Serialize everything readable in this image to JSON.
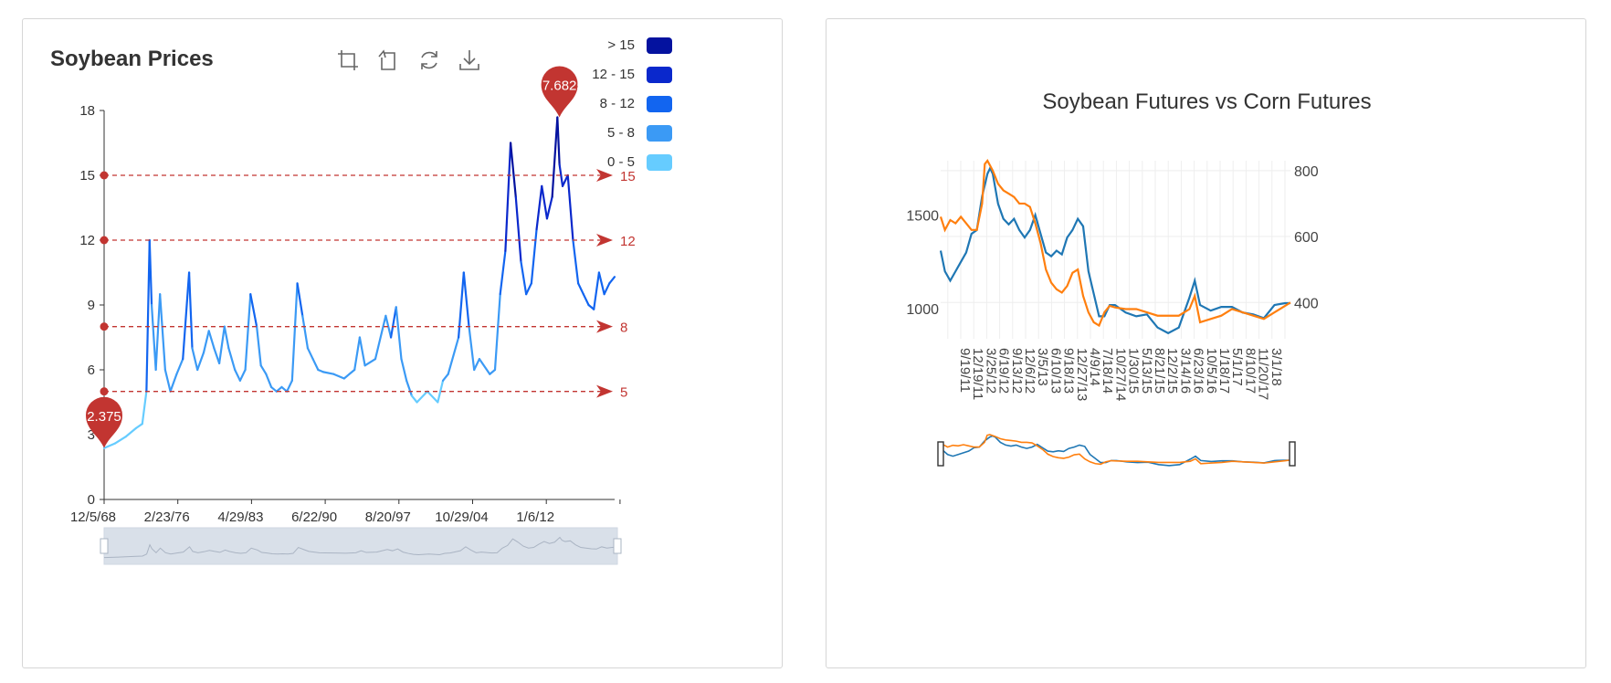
{
  "left_card": {
    "title": "Soybean Prices",
    "toolbox": [
      "data-zoom-icon",
      "zoom-reset-icon",
      "restore-icon",
      "download-icon"
    ]
  },
  "right_card": {
    "title": "Soybean Futures vs Corn Futures"
  },
  "chart_data": [
    {
      "type": "line",
      "title": "Soybean Prices",
      "x_tick_labels": [
        "12/5/68",
        "2/23/76",
        "4/29/83",
        "6/22/90",
        "8/20/97",
        "10/29/04",
        "1/6/12"
      ],
      "x_range": [
        1968.93,
        2018.0
      ],
      "yticks": [
        0,
        3,
        6,
        9,
        12,
        15,
        18
      ],
      "ylim": [
        0,
        18
      ],
      "series": [
        {
          "x": [
            1968.93,
            1970,
            1971,
            1972,
            1972.6,
            1973.0,
            1973.3,
            1973.5,
            1973.9,
            1974.3,
            1974.8,
            1975.3,
            1975.9,
            1976.5,
            1977.1,
            1977.4,
            1977.9,
            1978.5,
            1979.0,
            1979.5,
            1980.0,
            1980.5,
            1980.9,
            1981.5,
            1982.0,
            1982.5,
            1983.0,
            1983.6,
            1984.0,
            1984.5,
            1985.0,
            1985.5,
            1986.0,
            1986.5,
            1987.0,
            1987.5,
            1988.0,
            1988.5,
            1989.0,
            1989.5,
            1990.0,
            1991.0,
            1992.0,
            1993.0,
            1993.5,
            1994.0,
            1995.0,
            1996.0,
            1996.5,
            1997.0,
            1997.5,
            1998.0,
            1998.5,
            1999.0,
            2000.0,
            2001.0,
            2001.5,
            2002.0,
            2003.0,
            2003.5,
            2004.0,
            2004.5,
            2005.0,
            2006.0,
            2006.5,
            2007.0,
            2007.5,
            2008.0,
            2008.5,
            2009.0,
            2009.5,
            2010.0,
            2010.5,
            2011.0,
            2011.5,
            2012.0,
            2012.5,
            2012.7,
            2013.0,
            2013.5,
            2014.0,
            2014.5,
            2015.0,
            2015.5,
            2016.0,
            2016.5,
            2017.0,
            2017.5,
            2018.0
          ],
          "y": [
            2.375,
            2.6,
            2.9,
            3.3,
            3.5,
            5.0,
            12.0,
            9.0,
            6.0,
            9.5,
            6.0,
            5.0,
            5.8,
            6.5,
            10.5,
            7.0,
            6.0,
            6.8,
            7.8,
            7.0,
            6.3,
            8.0,
            7.0,
            6.0,
            5.5,
            6.0,
            9.5,
            8.0,
            6.2,
            5.8,
            5.2,
            5.0,
            5.2,
            5.0,
            5.5,
            10.0,
            8.5,
            7.0,
            6.5,
            6.0,
            5.9,
            5.8,
            5.6,
            6.0,
            7.5,
            6.2,
            6.5,
            8.5,
            7.5,
            8.9,
            6.5,
            5.5,
            4.8,
            4.5,
            5.0,
            4.5,
            5.5,
            5.8,
            7.5,
            10.5,
            8.0,
            6.0,
            6.5,
            5.8,
            6.0,
            9.5,
            11.5,
            16.5,
            14.0,
            11.0,
            9.5,
            10.0,
            12.5,
            14.5,
            13.0,
            14.0,
            17.6825,
            15.5,
            14.5,
            15.0,
            12.0,
            10.0,
            9.5,
            9.0,
            8.8,
            10.5,
            9.5,
            10.0,
            10.3
          ]
        }
      ],
      "visual_map": [
        {
          "label": "> 15",
          "min": 15,
          "max": 999,
          "color": "#04129f"
        },
        {
          "label": "12 - 15",
          "min": 12,
          "max": 15,
          "color": "#0a28cc"
        },
        {
          "label": "8 - 12",
          "min": 8,
          "max": 12,
          "color": "#1265f0"
        },
        {
          "label": "5 - 8",
          "min": 5,
          "max": 8,
          "color": "#3b9af5"
        },
        {
          "label": "0 - 5",
          "min": 0,
          "max": 5,
          "color": "#66ccff"
        }
      ],
      "mark_lines": [
        {
          "value": 15,
          "label": "15"
        },
        {
          "value": 12,
          "label": "12"
        },
        {
          "value": 8,
          "label": "8"
        },
        {
          "value": 5,
          "label": "5"
        }
      ],
      "mark_points": [
        {
          "x": 1968.93,
          "y": 2.375,
          "label": "2.375"
        },
        {
          "x": 2012.7,
          "y": 17.6825,
          "label": "17.6825"
        }
      ],
      "mark_color": "#c23531"
    },
    {
      "type": "line",
      "title": "Soybean Futures vs Corn Futures",
      "x_tick_labels": [
        "9/19/11",
        "12/19/11",
        "3/25/12",
        "6/19/12",
        "9/13/12",
        "12/6/12",
        "3/5/13",
        "6/10/13",
        "9/18/13",
        "12/27/13",
        "4/9/14",
        "7/18/14",
        "10/27/14",
        "1/30/15",
        "5/13/15",
        "8/21/15",
        "12/2/15",
        "3/14/16",
        "6/23/16",
        "10/5/16",
        "1/18/17",
        "5/1/17",
        "8/10/17",
        "11/20/17",
        "3/1/18"
      ],
      "y_left_ticks": [
        1000,
        1500
      ],
      "y_left_range": [
        840,
        1790
      ],
      "y_right_ticks": [
        400,
        600,
        800
      ],
      "y_right_range": [
        290,
        830
      ],
      "series": [
        {
          "axis": "left",
          "color": "#1f77b4",
          "x": [
            2011.72,
            2011.8,
            2011.9,
            2012.0,
            2012.1,
            2012.2,
            2012.3,
            2012.4,
            2012.5,
            2012.6,
            2012.65,
            2012.7,
            2012.8,
            2012.9,
            2013.0,
            2013.1,
            2013.2,
            2013.3,
            2013.4,
            2013.5,
            2013.6,
            2013.7,
            2013.8,
            2013.9,
            2014.0,
            2014.1,
            2014.2,
            2014.3,
            2014.4,
            2014.5,
            2014.6,
            2014.7,
            2014.8,
            2014.9,
            2015.0,
            2015.2,
            2015.4,
            2015.6,
            2015.8,
            2016.0,
            2016.2,
            2016.4,
            2016.5,
            2016.6,
            2016.8,
            2017.0,
            2017.2,
            2017.4,
            2017.6,
            2017.8,
            2018.0,
            2018.2,
            2018.3
          ],
          "y": [
            1310,
            1200,
            1150,
            1200,
            1250,
            1300,
            1400,
            1420,
            1600,
            1720,
            1750,
            1720,
            1560,
            1480,
            1450,
            1480,
            1420,
            1380,
            1420,
            1500,
            1400,
            1300,
            1280,
            1310,
            1290,
            1380,
            1420,
            1480,
            1440,
            1200,
            1080,
            960,
            960,
            1020,
            1020,
            980,
            960,
            970,
            900,
            870,
            900,
            1060,
            1150,
            1020,
            990,
            1010,
            1010,
            980,
            970,
            950,
            1020,
            1030,
            1030
          ]
        },
        {
          "axis": "right",
          "color": "#ff7f0e",
          "x": [
            2011.72,
            2011.8,
            2011.9,
            2012.0,
            2012.1,
            2012.2,
            2012.3,
            2012.4,
            2012.5,
            2012.55,
            2012.6,
            2012.7,
            2012.8,
            2012.9,
            2013.0,
            2013.1,
            2013.2,
            2013.3,
            2013.4,
            2013.5,
            2013.6,
            2013.7,
            2013.8,
            2013.9,
            2014.0,
            2014.1,
            2014.2,
            2014.3,
            2014.4,
            2014.5,
            2014.6,
            2014.7,
            2014.8,
            2014.9,
            2015.0,
            2015.2,
            2015.4,
            2015.6,
            2015.8,
            2016.0,
            2016.2,
            2016.4,
            2016.5,
            2016.6,
            2016.8,
            2017.0,
            2017.2,
            2017.4,
            2017.6,
            2017.8,
            2018.0,
            2018.2,
            2018.3
          ],
          "y": [
            660,
            620,
            650,
            640,
            660,
            640,
            620,
            620,
            700,
            820,
            830,
            800,
            760,
            740,
            730,
            720,
            700,
            700,
            690,
            640,
            580,
            500,
            460,
            440,
            430,
            450,
            490,
            500,
            420,
            370,
            340,
            330,
            370,
            390,
            385,
            380,
            380,
            370,
            360,
            360,
            360,
            380,
            420,
            340,
            350,
            360,
            380,
            370,
            360,
            350,
            370,
            390,
            400
          ]
        }
      ]
    }
  ]
}
